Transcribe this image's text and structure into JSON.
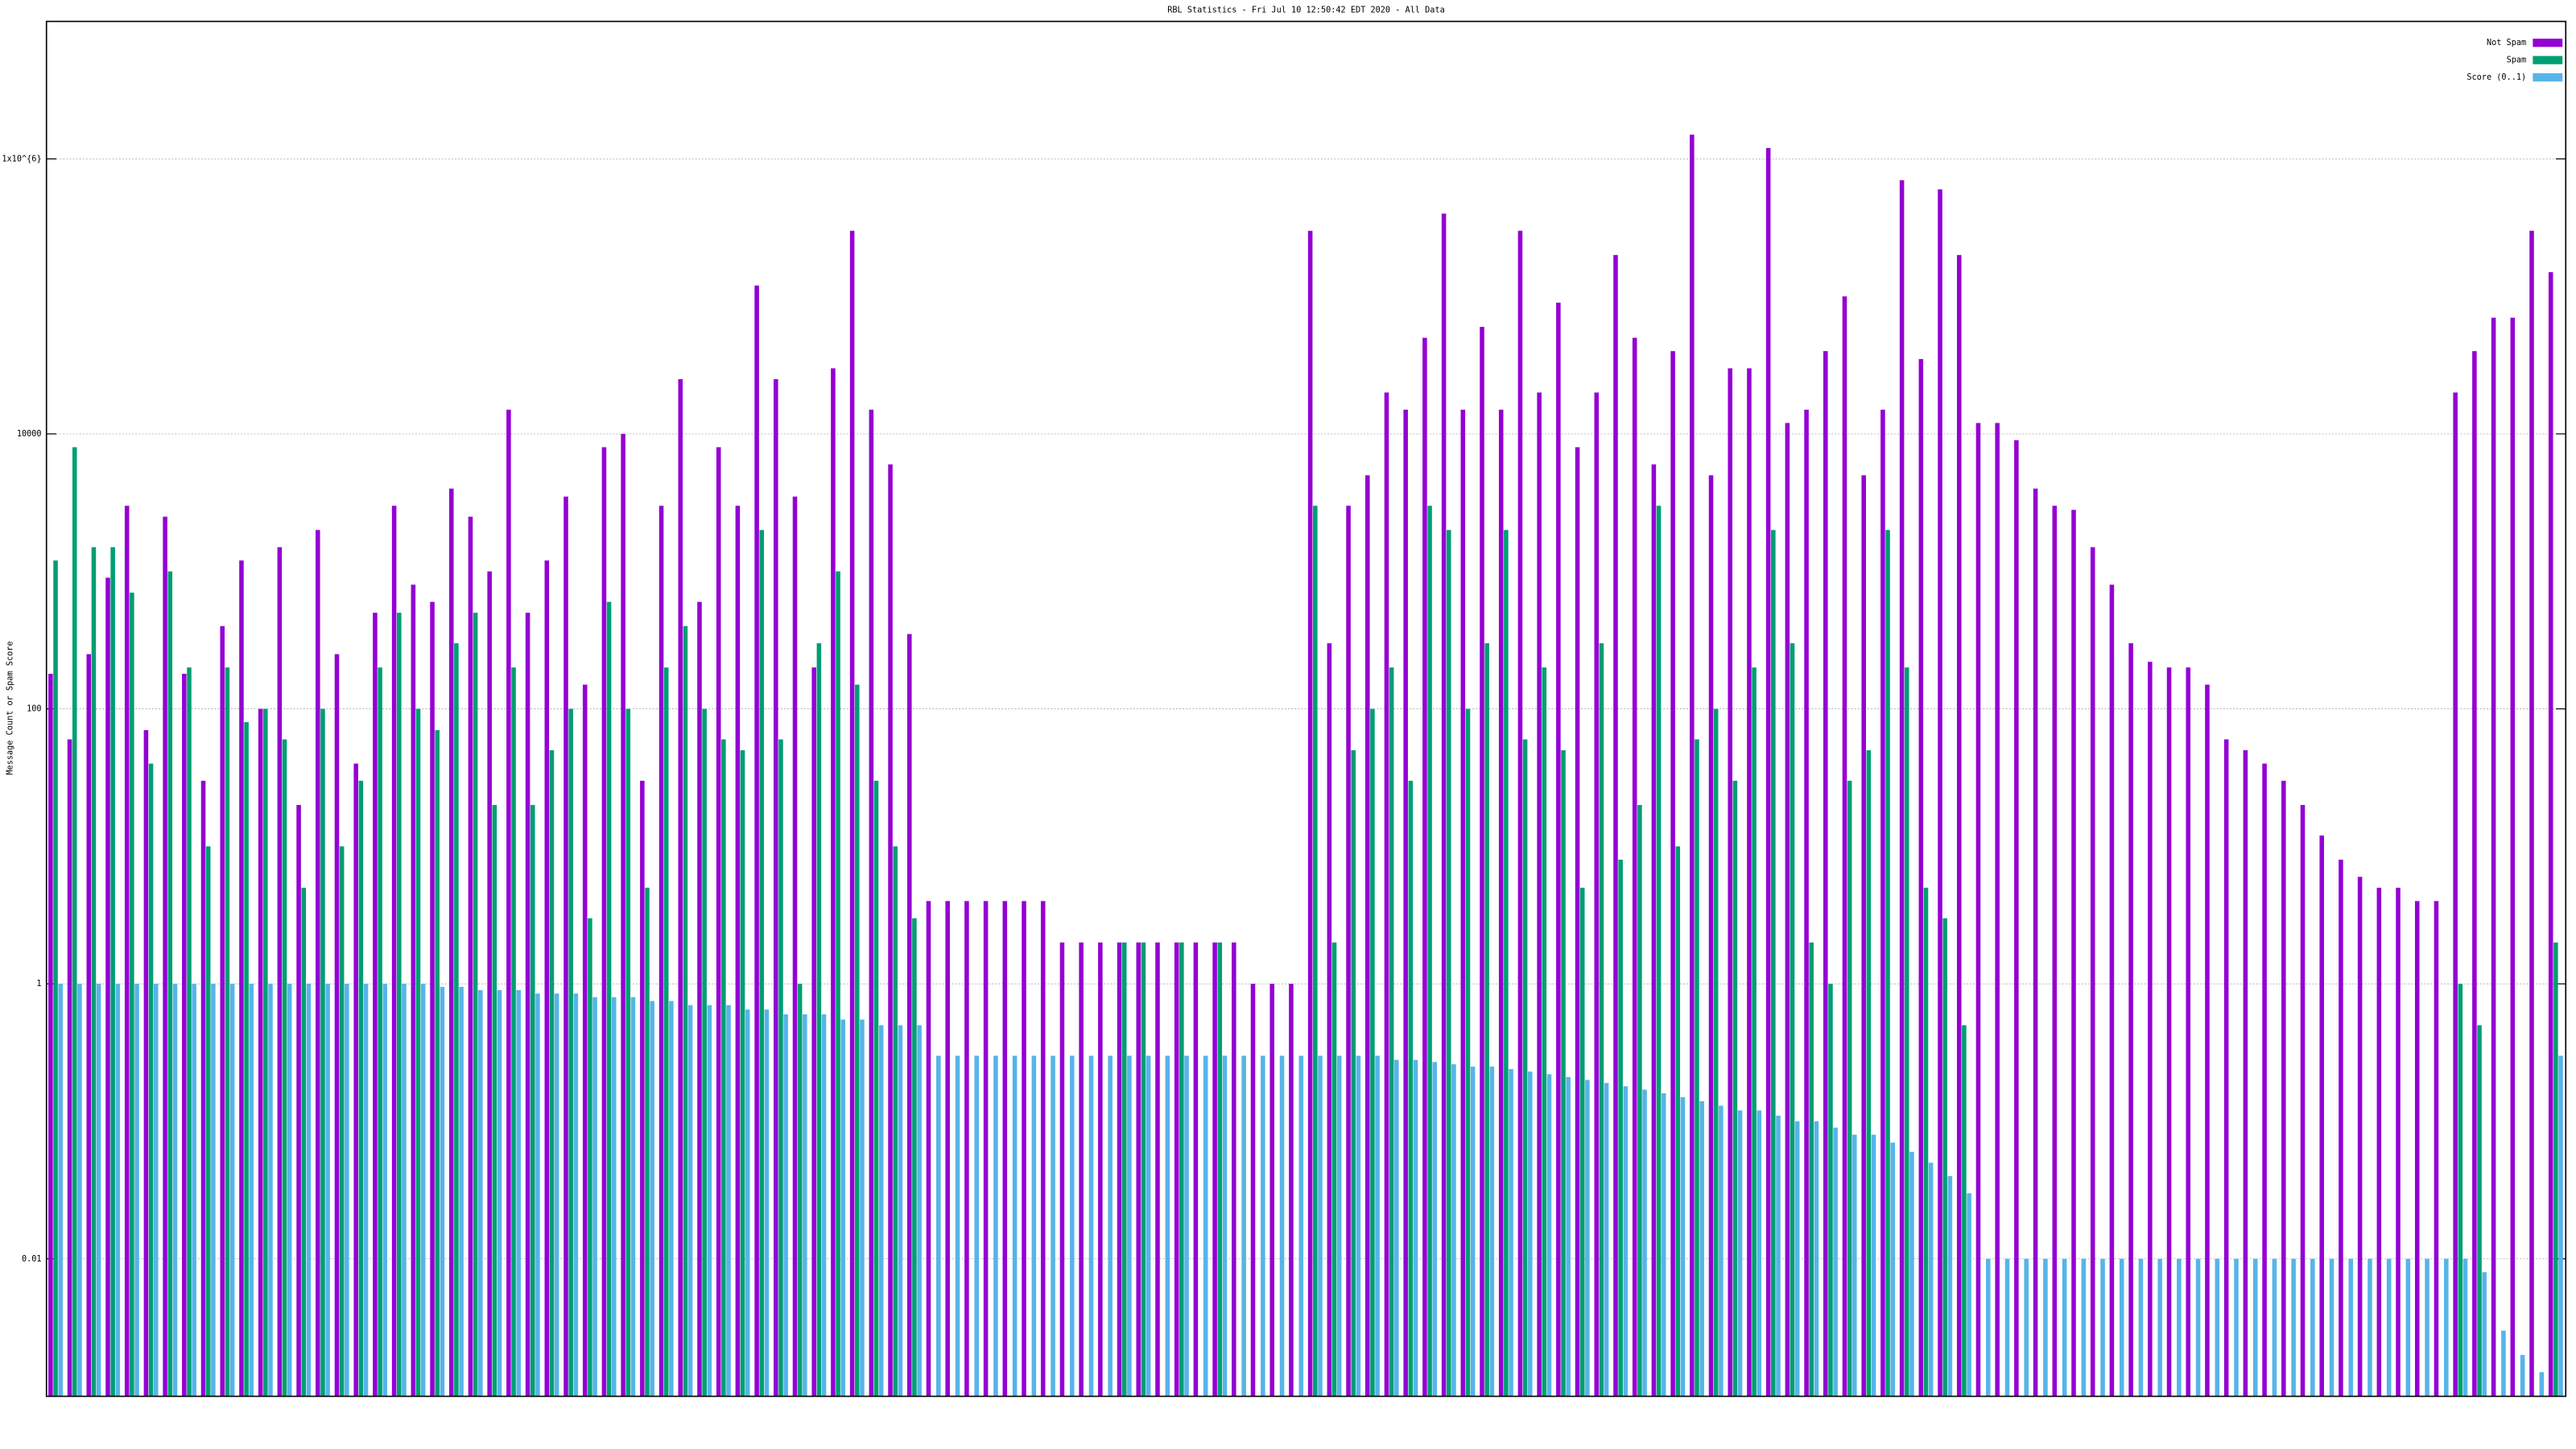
{
  "chart_data": {
    "type": "bar",
    "title": "RBL Statistics - Fri Jul 10 12:50:42 EDT 2020 - All Data",
    "y_label": "Message Count or Spam Score",
    "log_scale": true,
    "grid": true,
    "legend": "top-right",
    "ylim": [
      0.001,
      10000000
    ],
    "yticks": [
      0.01,
      1,
      100,
      10000,
      {
        "value": 1000000,
        "label": "1x10^{6}"
      }
    ],
    "categories": [
      null,
      null,
      null,
      null,
      null,
      null,
      null,
      null,
      null,
      null,
      null,
      null,
      null,
      null,
      null,
      null,
      null,
      null,
      null,
      null,
      null,
      null,
      null,
      null,
      null,
      null,
      null,
      null,
      null,
      null,
      null,
      null,
      null,
      null,
      null,
      null,
      null,
      null,
      null,
      null,
      null,
      null,
      null,
      null,
      null,
      null,
      null,
      null,
      null,
      null,
      null,
      null,
      null,
      null,
      null,
      null,
      null,
      null,
      null,
      null,
      null,
      null,
      null,
      null,
      null,
      null,
      null,
      null,
      null,
      null,
      null,
      null,
      null,
      null,
      null,
      null,
      null,
      null,
      null,
      null,
      null,
      null,
      null,
      null,
      null,
      null,
      null,
      null,
      null,
      null,
      null,
      null,
      null,
      null,
      null,
      null,
      null,
      null,
      null,
      null,
      null,
      null,
      null,
      null,
      null,
      null,
      null,
      null,
      null,
      null,
      null,
      null,
      null,
      null,
      null,
      null,
      null,
      null,
      null,
      null,
      null,
      null,
      null,
      null,
      null,
      null,
      null,
      null,
      null,
      null,
      null,
      null
    ],
    "series": [
      {
        "name": "Not Spam",
        "color": "#9400d3",
        "values": [
          180,
          60,
          250,
          900,
          3000,
          70,
          2500,
          180,
          30,
          400,
          1200,
          100,
          1500,
          20,
          2000,
          250,
          40,
          500,
          3000,
          800,
          600,
          4000,
          2500,
          1000,
          15000,
          500,
          1200,
          3500,
          150,
          8000,
          10000,
          30,
          3000,
          25000,
          600,
          8000,
          3000,
          120000,
          25000,
          3500,
          200,
          30000,
          300000,
          15000,
          6000,
          350,
          4,
          4,
          4,
          4,
          4,
          4,
          4,
          2,
          2,
          2,
          2,
          2,
          2,
          2,
          2,
          2,
          2,
          1,
          1,
          1,
          300000,
          300,
          3000,
          5000,
          20000,
          15000,
          50000,
          400000,
          15000,
          60000,
          15000,
          300000,
          20000,
          90000,
          8000,
          20000,
          200000,
          50000,
          6000,
          40000,
          1500000,
          5000,
          30000,
          30000,
          1200000,
          12000,
          15000,
          40000,
          100000,
          5000,
          15000,
          700000,
          35000,
          600000,
          200000,
          12000,
          12000,
          9000,
          4000,
          3000,
          2800,
          1500,
          800,
          300,
          220,
          200,
          200,
          150,
          60,
          50,
          40,
          30,
          20,
          12,
          8,
          6,
          5,
          5,
          4,
          4,
          20000,
          40000,
          70000,
          70000,
          300000,
          150000
        ]
      },
      {
        "name": "Spam",
        "color": "#009e73",
        "values": [
          1200,
          8000,
          1500,
          1500,
          700,
          40,
          1000,
          200,
          10,
          200,
          80,
          100,
          60,
          5,
          100,
          10,
          30,
          200,
          500,
          100,
          70,
          300,
          500,
          20,
          200,
          20,
          50,
          100,
          3,
          600,
          100,
          5,
          200,
          400,
          100,
          60,
          50,
          2000,
          60,
          1,
          300,
          1000,
          150,
          30,
          10,
          3,
          null,
          null,
          null,
          null,
          null,
          null,
          null,
          null,
          null,
          null,
          2,
          2,
          null,
          2,
          null,
          2,
          null,
          null,
          null,
          null,
          3000,
          2,
          50,
          100,
          200,
          30,
          3000,
          2000,
          100,
          300,
          2000,
          60,
          200,
          50,
          5,
          300,
          8,
          20,
          3000,
          10,
          60,
          100,
          30,
          200,
          2000,
          300,
          2,
          1,
          30,
          50,
          2000,
          200,
          5,
          3,
          0.5,
          null,
          null,
          null,
          null,
          null,
          null,
          null,
          null,
          null,
          null,
          null,
          null,
          null,
          null,
          null,
          null,
          null,
          null,
          null,
          null,
          null,
          null,
          null,
          null,
          null,
          1,
          0.5,
          null,
          null,
          null,
          2
        ]
      },
      {
        "name": "Score (0..1)",
        "color": "#56b4e9",
        "values": [
          1,
          1,
          1,
          1,
          1,
          1,
          1,
          1,
          1,
          1,
          1,
          1,
          1,
          1,
          1,
          1,
          1,
          1,
          1,
          1,
          0.95,
          0.95,
          0.9,
          0.9,
          0.9,
          0.85,
          0.85,
          0.85,
          0.8,
          0.8,
          0.8,
          0.75,
          0.75,
          0.7,
          0.7,
          0.7,
          0.65,
          0.65,
          0.6,
          0.6,
          0.6,
          0.55,
          0.55,
          0.5,
          0.5,
          0.5,
          0.3,
          0.3,
          0.3,
          0.3,
          0.3,
          0.3,
          0.3,
          0.3,
          0.3,
          0.3,
          0.3,
          0.3,
          0.3,
          0.3,
          0.3,
          0.3,
          0.3,
          0.3,
          0.3,
          0.3,
          0.3,
          0.3,
          0.3,
          0.3,
          0.28,
          0.28,
          0.27,
          0.26,
          0.25,
          0.25,
          0.24,
          0.23,
          0.22,
          0.21,
          0.2,
          0.19,
          0.18,
          0.17,
          0.16,
          0.15,
          0.14,
          0.13,
          0.12,
          0.12,
          0.11,
          0.1,
          0.1,
          0.09,
          0.08,
          0.08,
          0.07,
          0.06,
          0.05,
          0.04,
          0.03,
          0.01,
          0.01,
          0.01,
          0.01,
          0.01,
          0.01,
          0.01,
          0.01,
          0.01,
          0.01,
          0.01,
          0.01,
          0.01,
          0.01,
          0.01,
          0.01,
          0.01,
          0.01,
          0.01,
          0.01,
          0.01,
          0.01,
          0.01,
          0.01,
          0.01,
          0.01,
          0.008,
          0.003,
          0.002,
          0.0015,
          0.3
        ]
      }
    ]
  }
}
